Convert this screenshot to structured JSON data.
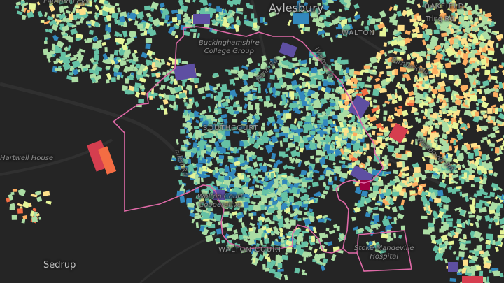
{
  "map": {
    "background_color": "#252525",
    "boundary_color": "#e06aa8",
    "palette": [
      "#5e4fa2",
      "#3288bd",
      "#66c2a5",
      "#abdda4",
      "#e6f598",
      "#fee08b",
      "#fdae61",
      "#f46d43",
      "#d53e4f",
      "#9e0142"
    ]
  },
  "labels": {
    "aylesbury": "Aylesbury",
    "bucks_college_line1": "Buckinghamshire",
    "bucks_college_line2": "College Group",
    "southcourt": "SOUTHCOURT",
    "walton": "WALTON",
    "walton_st": "Walton St",
    "tring_rd": "Tring Rd",
    "turnfurlong": "Turnfurlong",
    "wendover_rd": "Wendover Rd",
    "hartwell_house": "Hartwell House",
    "ellen_rd": "Ellen Rd",
    "penn_rd": "Penn Rd",
    "walton_court_line1": "Walton Court",
    "walton_court_line2": "Cooperative",
    "walton_court_area": "WALTON COURT",
    "stoke_mandeville_line1": "Stoke Mandeville",
    "stoke_mandeville_line2": "Hospital",
    "stone": "Sedrup",
    "fairford_leys": "Fairford Leys",
    "oakfield": "OAKFIELD"
  }
}
